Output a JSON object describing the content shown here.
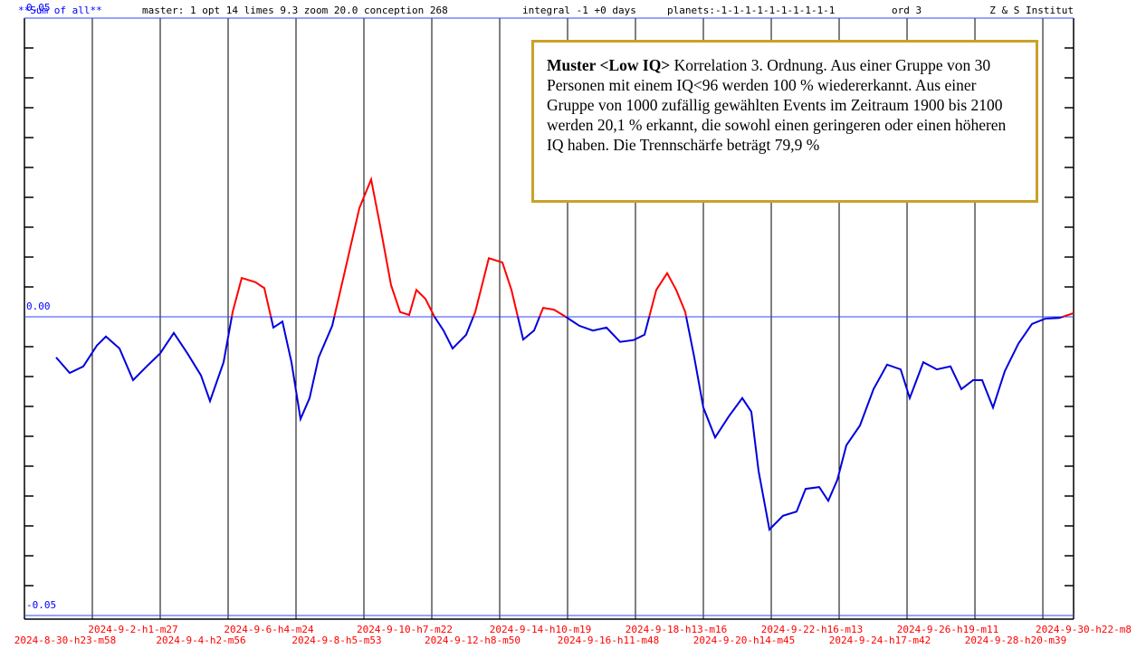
{
  "header": {
    "title": "**Sum of all**",
    "settings": "master: 1  opt 14 limes 9.3 zoom 20.0 conception 268",
    "integral": "integral -1 +0 days",
    "planets": "planets:-1-1-1-1-1-1-1-1-1-1",
    "ord": "ord 3",
    "institute": "Z & S Institut"
  },
  "annotation": {
    "bold": "Muster <Low IQ>",
    "text": " Korrelation 3. Ordnung. Aus einer Gruppe von 30 Personen mit einem IQ<96  werden 100 % wiedererkannt. Aus einer Gruppe von 1000 zufällig gewählten Events im Zeitraum 1900 bis 2100 werden 20,1 % erkannt, die sowohl einen geringeren oder einen höheren IQ haben. Die Trennschärfe beträgt 79,9 %"
  },
  "chart_data": {
    "type": "line",
    "above_color": "#ff0000",
    "below_color": "#0000dd",
    "zero_line_color": "#3344ff",
    "xlim": [
      0,
      15.453
    ],
    "ylim": [
      -0.05,
      0.05
    ],
    "yticks": [
      -0.05,
      {
        "value": 0,
        "label": "0.00"
      },
      0.05
    ],
    "yminorticks": [
      -0.045,
      -0.04,
      -0.035,
      -0.03,
      -0.025,
      -0.02,
      -0.015,
      -0.01,
      -0.005,
      0.005,
      0.01,
      0.015,
      0.02,
      0.025,
      0.03,
      0.035,
      0.04,
      0.045
    ],
    "xticks": [
      {
        "value": 0,
        "label": "2024-8-30-h23-m58"
      },
      {
        "value": 1,
        "label": "2024-9-2-h1-m27"
      },
      {
        "value": 2,
        "label": "2024-9-4-h2-m56"
      },
      {
        "value": 3,
        "label": "2024-9-6-h4-m24"
      },
      {
        "value": 4,
        "label": "2024-9-8-h5-m53"
      },
      {
        "value": 5,
        "label": "2024-9-10-h7-m22"
      },
      {
        "value": 6,
        "label": "2024-9-12-h8-m50"
      },
      {
        "value": 7,
        "label": "2024-9-14-h10-m19"
      },
      {
        "value": 8,
        "label": "2024-9-16-h11-m48"
      },
      {
        "value": 9,
        "label": "2024-9-18-h13-m16"
      },
      {
        "value": 10,
        "label": "2024-9-20-h14-m45"
      },
      {
        "value": 11,
        "label": "2024-9-22-h16-m13"
      },
      {
        "value": 12,
        "label": "2024-9-24-h17-m42"
      },
      {
        "value": 13,
        "label": "2024-9-26-h19-m11"
      },
      {
        "value": 14,
        "label": "2024-9-28-h20-m39"
      },
      {
        "value": 15,
        "label": "2024-9-30-h22-m8"
      }
    ],
    "x": [
      0.467,
      0.667,
      0.867,
      1.067,
      1.2,
      1.4,
      1.6,
      1.8,
      2.0,
      2.2,
      2.4,
      2.6,
      2.733,
      2.933,
      3.067,
      3.2,
      3.4,
      3.533,
      3.667,
      3.8,
      3.933,
      4.067,
      4.2,
      4.333,
      4.533,
      4.733,
      4.933,
      5.107,
      5.24,
      5.4,
      5.533,
      5.667,
      5.773,
      5.907,
      6.04,
      6.173,
      6.307,
      6.507,
      6.64,
      6.84,
      7.04,
      7.173,
      7.347,
      7.507,
      7.64,
      7.8,
      7.973,
      8.173,
      8.373,
      8.573,
      8.773,
      8.973,
      9.133,
      9.307,
      9.467,
      9.6,
      9.733,
      9.867,
      10.0,
      10.173,
      10.373,
      10.573,
      10.707,
      10.813,
      10.973,
      11.173,
      11.373,
      11.507,
      11.707,
      11.84,
      11.973,
      12.107,
      12.307,
      12.507,
      12.707,
      12.907,
      13.04,
      13.24,
      13.44,
      13.64,
      13.8,
      13.973,
      14.107,
      14.267,
      14.44,
      14.64,
      14.84,
      15.04,
      15.24,
      15.453
    ],
    "values": [
      -0.0068,
      -0.0094,
      -0.0083,
      -0.0048,
      -0.0033,
      -0.0053,
      -0.0106,
      -0.0083,
      -0.0061,
      -0.0027,
      -0.0061,
      -0.0098,
      -0.0141,
      -0.0076,
      0.0008,
      0.0065,
      0.0058,
      0.0048,
      -0.0018,
      -0.0008,
      -0.0076,
      -0.0171,
      -0.0136,
      -0.0068,
      -0.0015,
      0.0083,
      0.0182,
      0.023,
      0.0152,
      0.0053,
      0.0008,
      0.0003,
      0.0045,
      0.003,
      0,
      -0.0023,
      -0.0053,
      -0.003,
      0.0008,
      0.0098,
      0.0091,
      0.0045,
      -0.0038,
      -0.0023,
      0.0015,
      0.0012,
      0,
      -0.0015,
      -0.0023,
      -0.0018,
      -0.0042,
      -0.0039,
      -0.003,
      0.0045,
      0.0073,
      0.0045,
      0.0008,
      -0.0068,
      -0.0152,
      -0.0202,
      -0.0167,
      -0.0136,
      -0.0159,
      -0.0258,
      -0.0356,
      -0.0333,
      -0.0326,
      -0.0288,
      -0.0285,
      -0.0308,
      -0.0273,
      -0.0215,
      -0.0182,
      -0.0121,
      -0.008,
      -0.0088,
      -0.0136,
      -0.0076,
      -0.0088,
      -0.0083,
      -0.0121,
      -0.0106,
      -0.0106,
      -0.0152,
      -0.0091,
      -0.0045,
      -0.0012,
      -0.0003,
      -0.0002,
      0.0006
    ]
  }
}
